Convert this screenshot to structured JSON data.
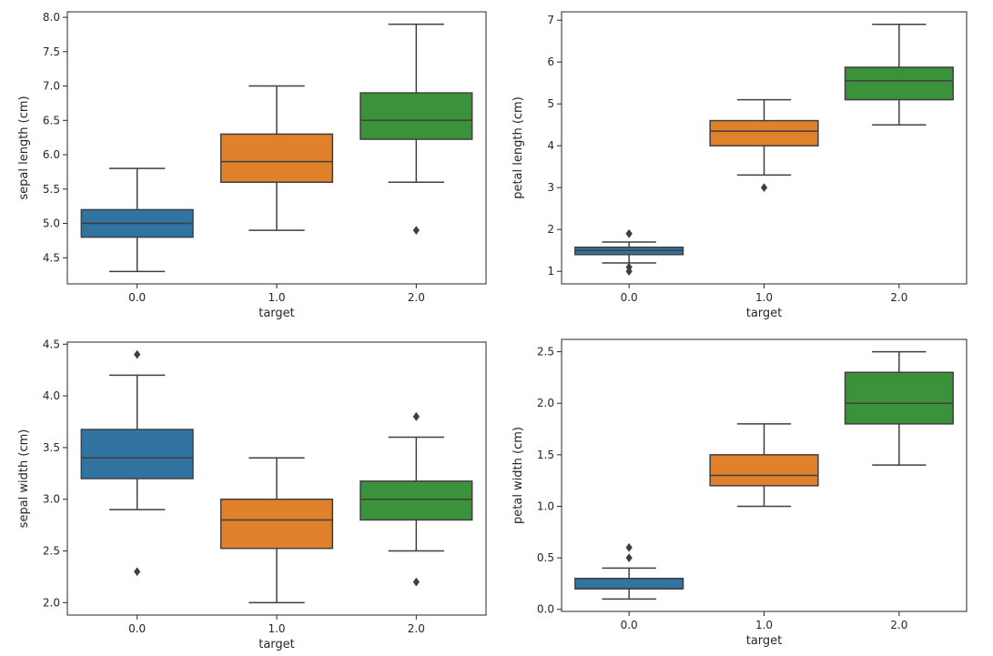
{
  "colors": {
    "box_fill": [
      "#3274a1",
      "#e1812c",
      "#3a923a"
    ],
    "line": "#3f3f3f",
    "axis": "#262626",
    "background": "#ffffff"
  },
  "chart_data": [
    {
      "type": "box",
      "title": "",
      "xlabel": "target",
      "ylabel": "sepal length (cm)",
      "categories": [
        "0.0",
        "1.0",
        "2.0"
      ],
      "yticks": [
        "4.5",
        "5.0",
        "5.5",
        "6.0",
        "6.5",
        "7.0",
        "7.5",
        "8.0"
      ],
      "ylim": [
        4.12,
        8.08
      ],
      "grid": false,
      "boxes": [
        {
          "whisker_low": 4.3,
          "q1": 4.8,
          "median": 5.0,
          "q3": 5.2,
          "whisker_high": 5.8,
          "outliers": []
        },
        {
          "whisker_low": 4.9,
          "q1": 5.6,
          "median": 5.9,
          "q3": 6.3,
          "whisker_high": 7.0,
          "outliers": []
        },
        {
          "whisker_low": 5.6,
          "q1": 6.225,
          "median": 6.5,
          "q3": 6.9,
          "whisker_high": 7.9,
          "outliers": [
            4.9
          ]
        }
      ]
    },
    {
      "type": "box",
      "title": "",
      "xlabel": "target",
      "ylabel": "petal length (cm)",
      "categories": [
        "0.0",
        "1.0",
        "2.0"
      ],
      "yticks": [
        "1",
        "2",
        "3",
        "4",
        "5",
        "6",
        "7"
      ],
      "ylim": [
        0.7,
        7.2
      ],
      "grid": false,
      "boxes": [
        {
          "whisker_low": 1.2,
          "q1": 1.4,
          "median": 1.5,
          "q3": 1.575,
          "whisker_high": 1.7,
          "outliers": [
            1.9,
            1.9,
            1.0,
            1.1
          ]
        },
        {
          "whisker_low": 3.3,
          "q1": 4.0,
          "median": 4.35,
          "q3": 4.6,
          "whisker_high": 5.1,
          "outliers": [
            3.0
          ]
        },
        {
          "whisker_low": 4.5,
          "q1": 5.1,
          "median": 5.55,
          "q3": 5.875,
          "whisker_high": 6.9,
          "outliers": []
        }
      ]
    },
    {
      "type": "box",
      "title": "",
      "xlabel": "target",
      "ylabel": "sepal width (cm)",
      "categories": [
        "0.0",
        "1.0",
        "2.0"
      ],
      "yticks": [
        "2.0",
        "2.5",
        "3.0",
        "3.5",
        "4.0",
        "4.5"
      ],
      "ylim": [
        1.88,
        4.52
      ],
      "grid": false,
      "boxes": [
        {
          "whisker_low": 2.9,
          "q1": 3.2,
          "median": 3.4,
          "q3": 3.675,
          "whisker_high": 4.2,
          "outliers": [
            4.4,
            2.3
          ]
        },
        {
          "whisker_low": 2.0,
          "q1": 2.525,
          "median": 2.8,
          "q3": 3.0,
          "whisker_high": 3.4,
          "outliers": []
        },
        {
          "whisker_low": 2.5,
          "q1": 2.8,
          "median": 3.0,
          "q3": 3.175,
          "whisker_high": 3.6,
          "outliers": [
            3.8,
            3.8,
            2.2
          ]
        }
      ]
    },
    {
      "type": "box",
      "title": "",
      "xlabel": "target",
      "ylabel": "petal width (cm)",
      "categories": [
        "0.0",
        "1.0",
        "2.0"
      ],
      "yticks": [
        "0.0",
        "0.5",
        "1.0",
        "1.5",
        "2.0",
        "2.5"
      ],
      "ylim": [
        -0.02,
        2.62
      ],
      "grid": false,
      "boxes": [
        {
          "whisker_low": 0.1,
          "q1": 0.2,
          "median": 0.2,
          "q3": 0.3,
          "whisker_high": 0.4,
          "outliers": [
            0.6,
            0.5
          ]
        },
        {
          "whisker_low": 1.0,
          "q1": 1.2,
          "median": 1.3,
          "q3": 1.5,
          "whisker_high": 1.8,
          "outliers": []
        },
        {
          "whisker_low": 1.4,
          "q1": 1.8,
          "median": 2.0,
          "q3": 2.3,
          "whisker_high": 2.5,
          "outliers": []
        }
      ]
    }
  ]
}
